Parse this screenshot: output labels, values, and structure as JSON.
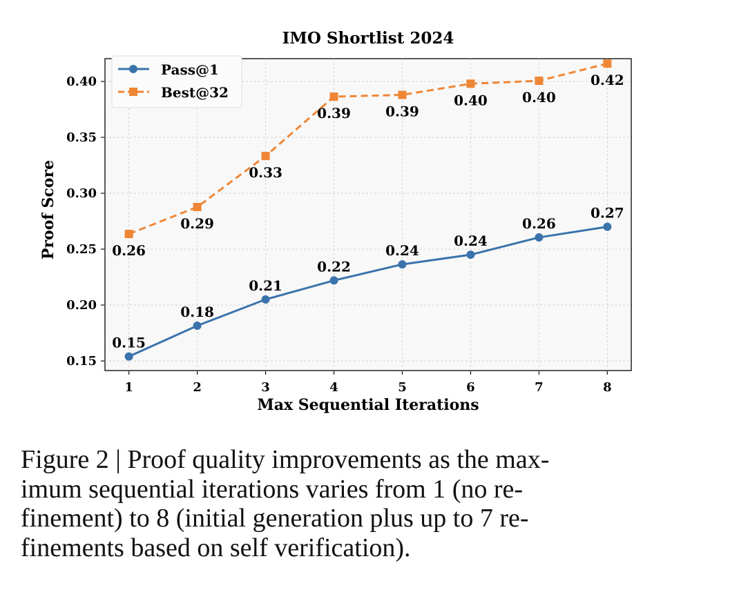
{
  "chart_data": {
    "type": "line",
    "title": "IMO Shortlist 2024",
    "xlabel": "Max Sequential Iterations",
    "ylabel": "Proof Score",
    "x": [
      1,
      2,
      3,
      4,
      5,
      6,
      7,
      8
    ],
    "xlim": [
      0.65,
      8.35
    ],
    "ylim": [
      0.1414,
      0.4204
    ],
    "xticks": [
      "1",
      "2",
      "3",
      "4",
      "5",
      "6",
      "7",
      "8"
    ],
    "yticks": [
      "0.15",
      "0.20",
      "0.25",
      "0.30",
      "0.35",
      "0.40"
    ],
    "grid": true,
    "legend": "top-left",
    "series": [
      {
        "name": "Pass@1",
        "color": "#3a73ac",
        "marker": "circle",
        "linestyle": "solid",
        "values": [
          0.154,
          0.1815,
          0.205,
          0.222,
          0.2364,
          0.245,
          0.2605,
          0.27
        ],
        "labels": [
          "0.15",
          "0.18",
          "0.21",
          "0.22",
          "0.24",
          "0.24",
          "0.26",
          "0.27"
        ],
        "label_position": "above"
      },
      {
        "name": "Best@32",
        "color": "#ee8636",
        "marker": "square",
        "linestyle": "dashed",
        "values": [
          0.2636,
          0.2877,
          0.3333,
          0.3864,
          0.388,
          0.398,
          0.4006,
          0.416
        ],
        "labels": [
          "0.26",
          "0.29",
          "0.33",
          "0.39",
          "0.39",
          "0.40",
          "0.40",
          "0.42"
        ],
        "label_position": "below"
      }
    ]
  },
  "caption": {
    "lines": [
      "Figure 2 | Proof quality improvements as the max-",
      "imum sequential iterations varies from 1 (no re-",
      "finement) to 8 (initial generation plus up to 7 re-",
      "finements based on self verification)."
    ]
  }
}
